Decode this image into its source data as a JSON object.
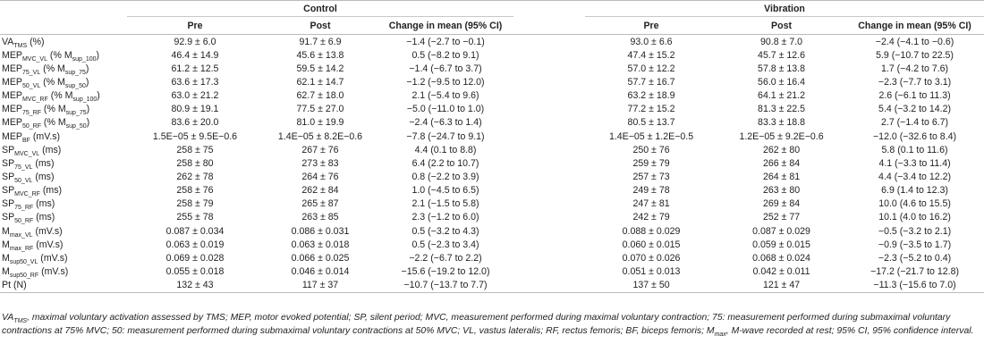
{
  "groups": {
    "control": "Control",
    "vibration": "Vibration"
  },
  "columns": {
    "pre": "Pre",
    "post": "Post",
    "change": "Change in mean (95% CI)"
  },
  "rows": [
    {
      "label": "VA",
      "sub": "TMS",
      "suffix": " (%)",
      "c_pre": "92.9 ± 6.0",
      "c_post": "91.7 ± 6.9",
      "c_change": "−1.4 (−2.7 to −0.1)",
      "v_pre": "93.0 ± 6.6",
      "v_post": "90.8 ± 7.0",
      "v_change": "−2.4 (−4.1 to −0.6)"
    },
    {
      "label": "MEP",
      "sub": "MVC_VL",
      "suffix": " (% M",
      "suffix_sub": "sup_100",
      "suffix_end": ")",
      "c_pre": "46.4 ± 14.9",
      "c_post": "45.6 ± 13.8",
      "c_change": "0.5 (−8.2 to 9.1)",
      "v_pre": "47.4 ± 15.2",
      "v_post": "45.7 ± 12.6",
      "v_change": "5.9 (−10.7 to 22.5)"
    },
    {
      "label": "MEP",
      "sub": "75_VL",
      "suffix": " (% M",
      "suffix_sub": "sup_75",
      "suffix_end": ")",
      "c_pre": "61.2 ± 12.5",
      "c_post": "59.5 ± 14.2",
      "c_change": "−1.4 (−6.7 to 3.7)",
      "v_pre": "57.0 ± 12.2",
      "v_post": "57.8 ± 13.8",
      "v_change": "1.7 (−4.2 to 7.6)"
    },
    {
      "label": "MEP",
      "sub": "50_VL",
      "suffix": " (% M",
      "suffix_sub": "sup_50",
      "suffix_end": ")",
      "c_pre": "63.6 ± 17.3",
      "c_post": "62.1 ± 14.7",
      "c_change": "−1.2 (−9.5 to 12.0)",
      "v_pre": "57.7 ± 16.7",
      "v_post": "56.0 ± 16.4",
      "v_change": "−2.3 (−7.7 to 3.1)"
    },
    {
      "label": "MEP",
      "sub": "MVC_RF",
      "suffix": " (% M",
      "suffix_sub": "sup_100",
      "suffix_end": ")",
      "c_pre": "63.0 ± 21.2",
      "c_post": "62.7 ± 18.0",
      "c_change": "2.1 (−5.4 to 9.6)",
      "v_pre": "63.2 ± 18.9",
      "v_post": "64.1 ± 21.2",
      "v_change": "2.6 (−6.1 to 11.3)"
    },
    {
      "label": "MEP",
      "sub": "75_RF",
      "suffix": " (% M",
      "suffix_sub": "sup_75",
      "suffix_end": ")",
      "c_pre": "80.9 ± 19.1",
      "c_post": "77.5 ± 27.0",
      "c_change": "−5.0 (−11.0 to 1.0)",
      "v_pre": "77.2 ± 15.2",
      "v_post": "81.3 ± 22.5",
      "v_change": "5.4 (−3.2 to 14.2)"
    },
    {
      "label": "MEP",
      "sub": "50_RF",
      "suffix": " (% M",
      "suffix_sub": "sup_50",
      "suffix_end": ")",
      "c_pre": "83.6 ± 20.0",
      "c_post": "81.0 ± 19.9",
      "c_change": "−2.4 (−6.3 to 1.4)",
      "v_pre": "80.5 ± 13.7",
      "v_post": "83.3 ± 18.8",
      "v_change": "2.7 (−1.4 to 6.7)"
    },
    {
      "label": "MEP",
      "sub": "BF",
      "suffix": " (mV.s)",
      "c_pre": "1.5E−05 ± 9.5E−0.6",
      "c_post": "1.4E−05 ± 8.2E−0.6",
      "c_change": "−7.8 (−24.7 to 9.1)",
      "v_pre": "1.4E−05 ± 1.2E−0.5",
      "v_post": "1.2E−05 ± 9.2E−0.6",
      "v_change": "−12.0 (−32.6 to 8.4)"
    },
    {
      "label": "SP",
      "sub": "MVC_VL",
      "suffix": " (ms)",
      "c_pre": "258 ± 75",
      "c_post": "267 ± 76",
      "c_change": "4.4 (0.1 to 8.8)",
      "v_pre": "250 ± 76",
      "v_post": "262 ± 80",
      "v_change": "5.8 (0.1 to 11.6)"
    },
    {
      "label": "SP",
      "sub": "75_VL",
      "suffix": " (ms)",
      "c_pre": "258 ± 80",
      "c_post": "273 ± 83",
      "c_change": "6.4 (2.2 to 10.7)",
      "v_pre": "259 ± 79",
      "v_post": "266 ± 84",
      "v_change": "4.1 (−3.3 to 11.4)"
    },
    {
      "label": "SP",
      "sub": "50_VL",
      "suffix": " (ms)",
      "c_pre": "262 ± 78",
      "c_post": "264 ± 76",
      "c_change": "0.8 (−2.2 to 3.9)",
      "v_pre": "257 ± 73",
      "v_post": "264 ± 81",
      "v_change": "4.4 (−3.4 to 12.2)"
    },
    {
      "label": "SP",
      "sub": "MVC_RF",
      "suffix": " (ms)",
      "c_pre": "258 ± 76",
      "c_post": "262 ± 84",
      "c_change": "1.0 (−4.5 to 6.5)",
      "v_pre": "249 ± 78",
      "v_post": "263 ± 80",
      "v_change": "6.9 (1.4 to 12.3)"
    },
    {
      "label": "SP",
      "sub": "75_RF",
      "suffix": " (ms)",
      "c_pre": "258 ± 79",
      "c_post": "265 ± 87",
      "c_change": "2.1 (−1.5 to 5.8)",
      "v_pre": "247 ± 81",
      "v_post": "269 ± 84",
      "v_change": "10.0 (4.6 to 15.5)"
    },
    {
      "label": "SP",
      "sub": "50_RF",
      "suffix": " (ms)",
      "c_pre": "255 ± 78",
      "c_post": "263 ± 85",
      "c_change": "2.3 (−1.2 to 6.0)",
      "v_pre": "242 ± 79",
      "v_post": "252 ± 77",
      "v_change": "10.1 (4.0 to 16.2)"
    },
    {
      "label": "M",
      "sub": "max_VL",
      "suffix": " (mV.s)",
      "c_pre": "0.087 ± 0.034",
      "c_post": "0.086 ± 0.031",
      "c_change": "0.5 (−3.2 to 4.3)",
      "v_pre": "0.088 ± 0.029",
      "v_post": "0.087 ± 0.029",
      "v_change": "−0.5 (−3.2 to 2.1)"
    },
    {
      "label": "M",
      "sub": "max_RF",
      "suffix": " (mV.s)",
      "c_pre": "0.063 ± 0.019",
      "c_post": "0.063 ± 0.018",
      "c_change": "0.5 (−2.3 to 3.4)",
      "v_pre": "0.060 ± 0.015",
      "v_post": "0.059 ± 0.015",
      "v_change": "−0.9 (−3.5 to 1.7)"
    },
    {
      "label": "M",
      "sub": "sup50_VL",
      "suffix": " (mV.s)",
      "c_pre": "0.069 ± 0.028",
      "c_post": "0.066 ± 0.025",
      "c_change": "−2.2 (−6.7 to 2.2)",
      "v_pre": "0.070 ± 0.026",
      "v_post": "0.068 ± 0.024",
      "v_change": "−2.3 (−5.2 to 0.4)"
    },
    {
      "label": "M",
      "sub": "sup50_RF",
      "suffix": " (mV.s)",
      "c_pre": "0.055 ± 0.018",
      "c_post": "0.046 ± 0.014",
      "c_change": "−15.6 (−19.2 to 12.0)",
      "v_pre": "0.051 ± 0.013",
      "v_post": "0.042 ± 0.011",
      "v_change": "−17.2 (−21.7 to 12.8)"
    },
    {
      "label": "Pt",
      "sub": "",
      "suffix": " (N)",
      "c_pre": "132 ± 43",
      "c_post": "117 ± 37",
      "c_change": "−10.7 (−13.7 to 7.7)",
      "v_pre": "137 ± 50",
      "v_post": "121 ± 47",
      "v_change": "−11.3 (−15.6 to 7.0)"
    }
  ],
  "footnote": {
    "va_label": "VA",
    "va_sub": "TMS",
    "text_1": ", maximal voluntary activation assessed by TMS; MEP, motor evoked potential; SP, silent period; MVC, measurement performed during maximal voluntary contraction; 75: measurement performed during submaximal voluntary contractions at 75% MVC; 50: measurement performed during submaximal voluntary contractions at 50% MVC; VL, vastus lateralis; RF, rectus femoris; BF, biceps femoris; M",
    "mmax_sub": "max",
    "text_2": ", M-wave recorded at rest; 95% CI, 95% confidence interval."
  }
}
